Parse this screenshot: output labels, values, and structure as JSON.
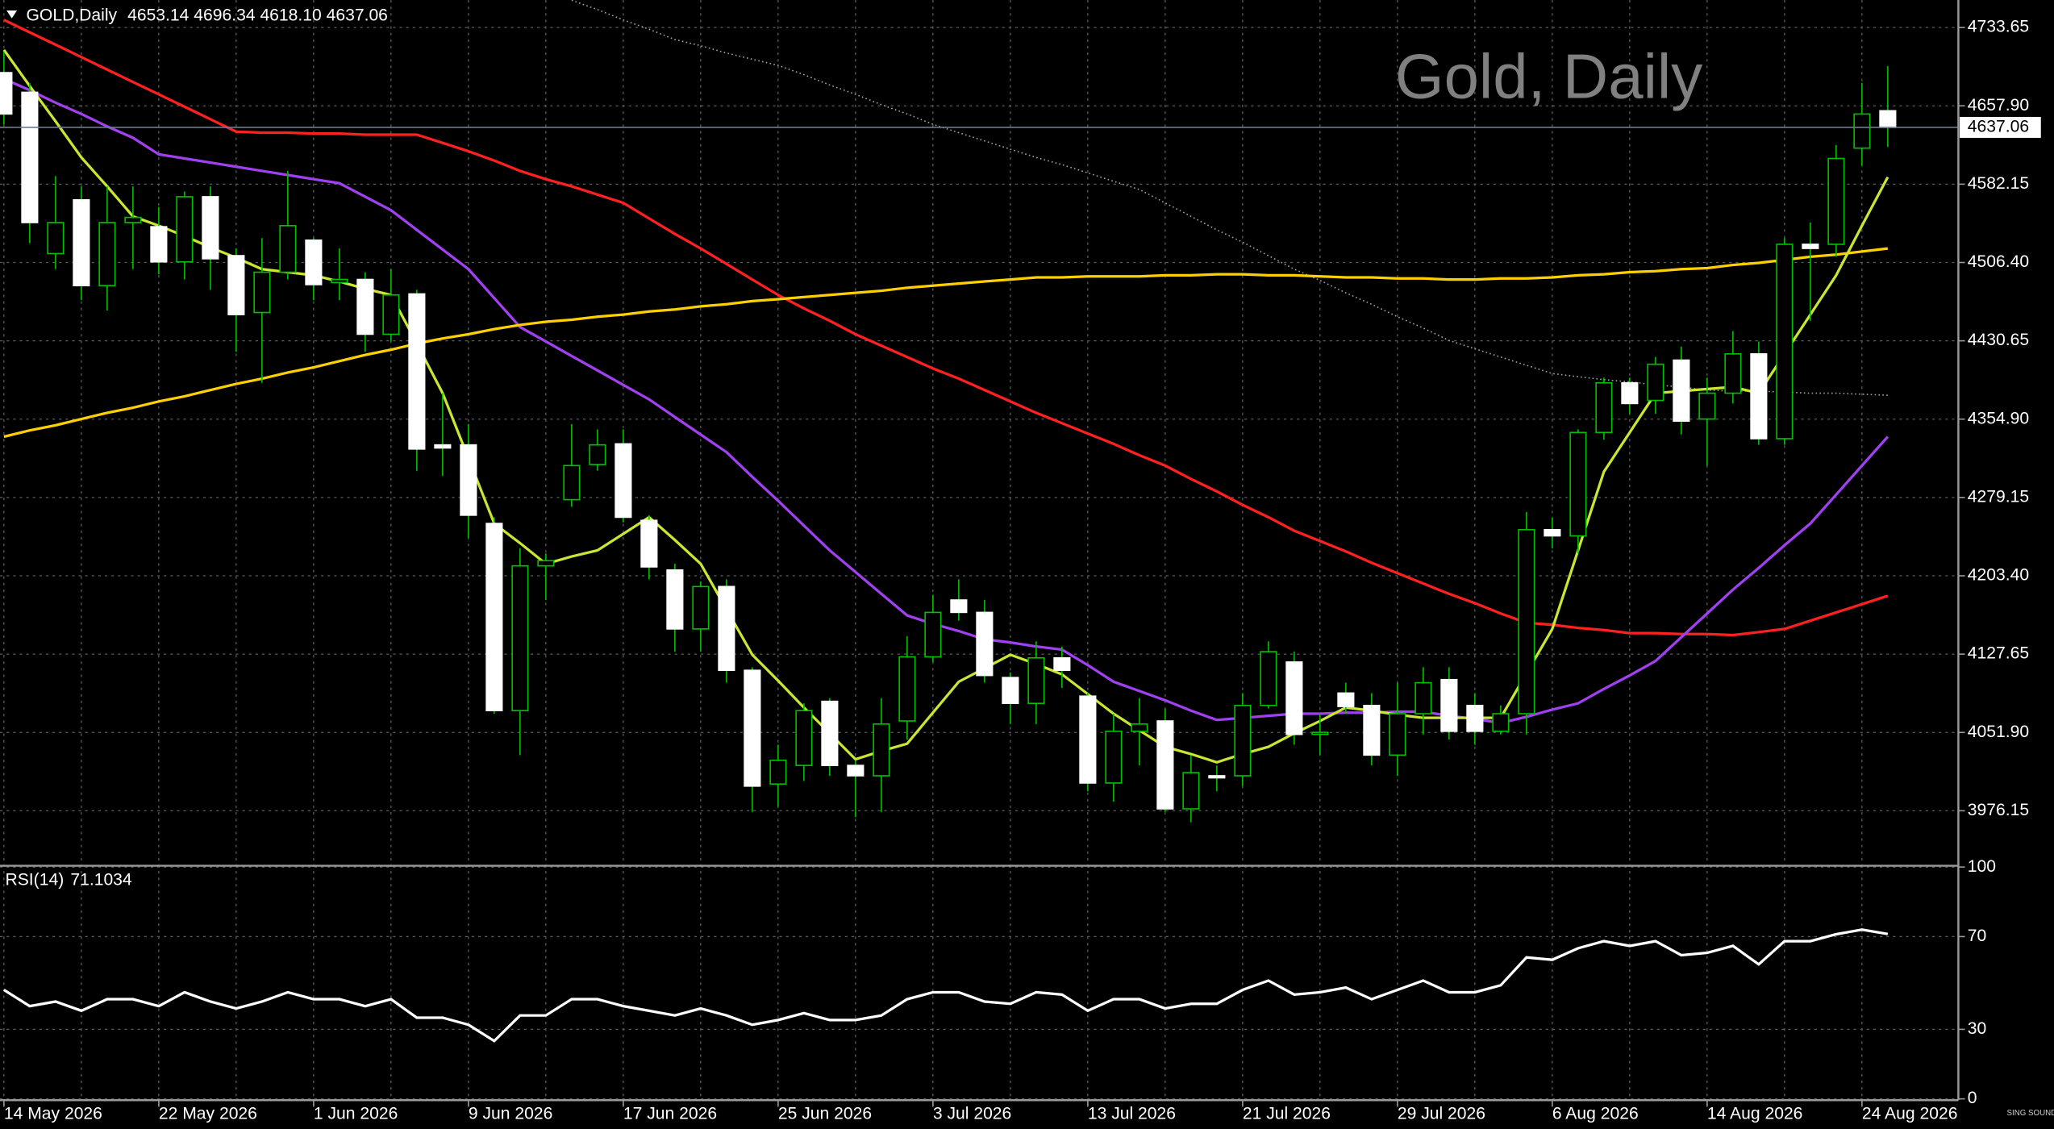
{
  "chart_data": [
    {
      "type": "candlestick",
      "title": "Gold, Daily",
      "symbol": "GOLD,Daily",
      "quote": "4653.14 4696.34 4618.10 4637.06",
      "categories": [
        "14 May 2026",
        null,
        null,
        null,
        null,
        null,
        "22 May 2026",
        null,
        null,
        null,
        null,
        null,
        "1 Jun 2026",
        null,
        null,
        null,
        null,
        null,
        "9 Jun 2026",
        null,
        null,
        null,
        null,
        null,
        "17 Jun 2026",
        null,
        null,
        null,
        null,
        null,
        "25 Jun 2026",
        null,
        null,
        null,
        null,
        null,
        "3 Jul 2026",
        null,
        null,
        null,
        null,
        null,
        "13 Jul 2026",
        null,
        null,
        null,
        null,
        null,
        "21 Jul 2026",
        null,
        null,
        null,
        null,
        null,
        "29 Jul 2026",
        null,
        null,
        null,
        null,
        null,
        "6 Aug 2026",
        null,
        null,
        null,
        null,
        null,
        "14 Aug 2026",
        null,
        null,
        null,
        null,
        null,
        "24 Aug 2026",
        null
      ],
      "open": [
        4690,
        4671,
        4515,
        4567,
        4484,
        4545,
        4541,
        4507,
        4570,
        4513,
        4458,
        4497,
        4528,
        4487,
        4490,
        4437,
        4476,
        4330,
        4330,
        4254,
        4073,
        4213,
        4277,
        4311,
        4331,
        4257,
        4209,
        4152,
        4193,
        4112,
        4002,
        4020,
        4082,
        4020,
        4010,
        4063,
        4125,
        4180,
        4168,
        4105,
        4080,
        4124,
        4087,
        4003,
        4053,
        4063,
        3978,
        4010,
        4010,
        4078,
        4120,
        4050,
        4090,
        4078,
        4030,
        4070,
        4103,
        4078,
        4053,
        4070,
        4248,
        4242,
        4342,
        4390,
        4373,
        4412,
        4355,
        4380,
        4418,
        4336,
        4524,
        4524,
        4617,
        4653.14
      ],
      "high": [
        4710,
        4680,
        4590,
        4580,
        4580,
        4580,
        4560,
        4575,
        4580,
        4520,
        4530,
        4595,
        4530,
        4520,
        4497,
        4500,
        4480,
        4380,
        4350,
        4260,
        4230,
        4225,
        4350,
        4345,
        4345,
        4262,
        4215,
        4198,
        4200,
        4115,
        4040,
        4080,
        4085,
        4025,
        4085,
        4145,
        4185,
        4200,
        4180,
        4110,
        4140,
        4135,
        4090,
        4070,
        4085,
        4075,
        4030,
        4020,
        4090,
        4140,
        4130,
        4070,
        4100,
        4090,
        4100,
        4115,
        4115,
        4090,
        4078,
        4265,
        4260,
        4345,
        4395,
        4395,
        4415,
        4425,
        4395,
        4440,
        4430,
        4530,
        4545,
        4620,
        4680,
        4696.34
      ],
      "low": [
        4640,
        4525,
        4500,
        4470,
        4460,
        4500,
        4495,
        4490,
        4480,
        4420,
        4390,
        4490,
        4470,
        4470,
        4420,
        4430,
        4305,
        4300,
        4240,
        4070,
        4030,
        4180,
        4270,
        4305,
        4255,
        4200,
        4130,
        4130,
        4100,
        3975,
        3980,
        4005,
        4010,
        3970,
        3975,
        4045,
        4120,
        4160,
        4100,
        4060,
        4060,
        4095,
        3995,
        3985,
        4020,
        3975,
        3965,
        3995,
        4000,
        4075,
        4040,
        4030,
        4070,
        4020,
        4010,
        4050,
        4045,
        4040,
        4050,
        4050,
        4230,
        4225,
        4335,
        4360,
        4360,
        4340,
        4310,
        4370,
        4330,
        4330,
        4450,
        4512,
        4600,
        4618.1
      ],
      "close": [
        4650,
        4545,
        4545,
        4484,
        4545,
        4550,
        4507,
        4570,
        4510,
        4456,
        4497,
        4542,
        4485,
        4490,
        4437,
        4475,
        4326,
        4327,
        4262,
        4073,
        4213,
        4218,
        4310,
        4330,
        4260,
        4212,
        4152,
        4193,
        4112,
        4000,
        4025,
        4073,
        4020,
        4010,
        4060,
        4125,
        4168,
        4168,
        4107,
        4080,
        4124,
        4112,
        4003,
        4053,
        4060,
        3978,
        4013,
        4008,
        4078,
        4130,
        4050,
        4052,
        4077,
        4030,
        4070,
        4100,
        4053,
        4053,
        4070,
        4248,
        4242,
        4342,
        4390,
        4370,
        4408,
        4353,
        4380,
        4418,
        4336,
        4524,
        4520,
        4607,
        4650,
        4637.06
      ],
      "up_color": "#00c000",
      "down_color": "#ffffff",
      "wick_color": "#00c000",
      "price_line_color": "#6e7b8b",
      "series": [
        {
          "color": "#a0a0a0",
          "style": "dotted",
          "values": [
            null,
            null,
            null,
            null,
            null,
            null,
            null,
            null,
            null,
            null,
            null,
            null,
            null,
            null,
            null,
            null,
            null,
            null,
            null,
            null,
            null,
            null,
            4760,
            4751,
            4741,
            4732,
            4722,
            4716,
            4709,
            4703,
            4697,
            4688,
            4678,
            4669,
            4659,
            4650,
            4640,
            4632,
            4624,
            4616,
            4608,
            4601,
            4593,
            4585,
            4577,
            4564,
            4551,
            4538,
            4526,
            4513,
            4500,
            4489,
            4477,
            4466,
            4454,
            4443,
            4431,
            4423,
            4415,
            4407,
            4399,
            4396,
            4393,
            4391,
            4388,
            4386,
            4383,
            4382,
            4382,
            4381,
            4380,
            4380,
            4379,
            4378
          ]
        },
        {
          "color": "#ff2020",
          "style": "solid",
          "values": [
            4741,
            4729,
            4717,
            4705,
            4693,
            4681,
            4669,
            4657,
            4645,
            4633,
            4632,
            4632,
            4631,
            4631,
            4630,
            4630,
            4630,
            4622,
            4614,
            4605,
            4595,
            4587,
            4580,
            4572,
            4564,
            4549,
            4534,
            4520,
            4505,
            4490,
            4475,
            4462,
            4450,
            4437,
            4426,
            4415,
            4404,
            4394,
            4383,
            4372,
            4361,
            4351,
            4341,
            4331,
            4320,
            4310,
            4297,
            4285,
            4272,
            4260,
            4247,
            4237,
            4227,
            4216,
            4206,
            4196,
            4186,
            4177,
            4167,
            4158,
            4156,
            4153,
            4151,
            4148,
            4148,
            4147,
            4147,
            4146,
            4149,
            4152,
            4160,
            4168,
            4176,
            4184
          ]
        },
        {
          "color": "#a040f0",
          "style": "solid",
          "values": [
            4684,
            4673,
            4661,
            4650,
            4638,
            4627,
            4611,
            4607,
            4603,
            4599,
            4595,
            4591,
            4587,
            4583,
            4570,
            4557,
            4538,
            4519,
            4500,
            4472,
            4444,
            4430,
            4416,
            4402,
            4388,
            4374,
            4357,
            4340,
            4323,
            4299,
            4276,
            4252,
            4228,
            4207,
            4186,
            4165,
            4157,
            4150,
            4142,
            4139,
            4135,
            4132,
            4117,
            4101,
            4092,
            4083,
            4073,
            4064,
            4066,
            4068,
            4070,
            4070,
            4071,
            4071,
            4072,
            4072,
            4068,
            4065,
            4061,
            4067,
            4074,
            4080,
            4094,
            4107,
            4121,
            4144,
            4167,
            4190,
            4211,
            4233,
            4254,
            4282,
            4310,
            4338
          ]
        },
        {
          "color": "#ffd000",
          "style": "solid",
          "values": [
            4338,
            4344,
            4349,
            4355,
            4361,
            4366,
            4372,
            4377,
            4383,
            4389,
            4394,
            4400,
            4405,
            4411,
            4417,
            4422,
            4428,
            4433,
            4437,
            4442,
            4446,
            4449,
            4451,
            4454,
            4456,
            4459,
            4461,
            4464,
            4466,
            4469,
            4471,
            4473,
            4475,
            4477,
            4479,
            4482,
            4484,
            4486,
            4488,
            4490,
            4492,
            4492,
            4493,
            4493,
            4493,
            4494,
            4494,
            4495,
            4495,
            4494,
            4494,
            4493,
            4492,
            4492,
            4491,
            4491,
            4490,
            4490,
            4491,
            4491,
            4492,
            4494,
            4495,
            4497,
            4498,
            4500,
            4501,
            4504,
            4506,
            4509,
            4512,
            4514,
            4517,
            4520
          ]
        },
        {
          "color": "#c8e632",
          "style": "solid",
          "values": [
            4712,
            4677,
            4643,
            4608,
            4580,
            4551,
            4542,
            4532,
            4521,
            4511,
            4500,
            4497,
            4494,
            4488,
            4481,
            4475,
            4428,
            4380,
            4317,
            4254,
            4235,
            4215,
            4222,
            4228,
            4244,
            4260,
            4238,
            4215,
            4171,
            4127,
            4102,
            4076,
            4051,
            4026,
            4034,
            4041,
            4071,
            4101,
            4114,
            4127,
            4118,
            4108,
            4089,
            4070,
            4054,
            4038,
            4031,
            4023,
            4031,
            4038,
            4051,
            4063,
            4076,
            4073,
            4069,
            4066,
            4066,
            4066,
            4066,
            4109,
            4152,
            4228,
            4304,
            4342,
            4380,
            4382,
            4384,
            4386,
            4380,
            4418,
            4456,
            4494,
            4542,
            4589
          ]
        }
      ],
      "ylim": [
        3924.25,
        4760.25
      ],
      "yticks": [
        3976.15,
        {
          "value": 4051.9,
          "label": "4051.90"
        },
        4127.65,
        {
          "value": 4203.4,
          "label": "4203.40"
        },
        4279.15,
        {
          "value": 4354.9,
          "label": "4354.90"
        },
        4430.65,
        {
          "value": 4506.4,
          "label": "4506.40"
        },
        4582.15,
        {
          "value": 4657.9,
          "label": "4657.90"
        },
        4733.65
      ],
      "grid": true
    },
    {
      "type": "line",
      "title": "RSI(14)",
      "series": [
        {
          "color": "#ffffff",
          "values": [
            47,
            40,
            42,
            38,
            43,
            43,
            40,
            46,
            42,
            39,
            42,
            46,
            43,
            43,
            40,
            43,
            35,
            35,
            32,
            25,
            36,
            36,
            43,
            43,
            40,
            38,
            36,
            39,
            36,
            32,
            34,
            37,
            34,
            34,
            36,
            43,
            46,
            46,
            42,
            41,
            46,
            45,
            38,
            43,
            43,
            39,
            41,
            41,
            47,
            51,
            45,
            46,
            48,
            43,
            47,
            51,
            46,
            46,
            49,
            61,
            60,
            65,
            68,
            66,
            68,
            62,
            63,
            66,
            58,
            68,
            68,
            71,
            73,
            71.1034
          ]
        }
      ],
      "ylim": [
        0,
        100
      ],
      "yticks": [
        0,
        30,
        70,
        100
      ],
      "grid": true
    }
  ],
  "footer": {
    "logo": "SING SOUND"
  }
}
